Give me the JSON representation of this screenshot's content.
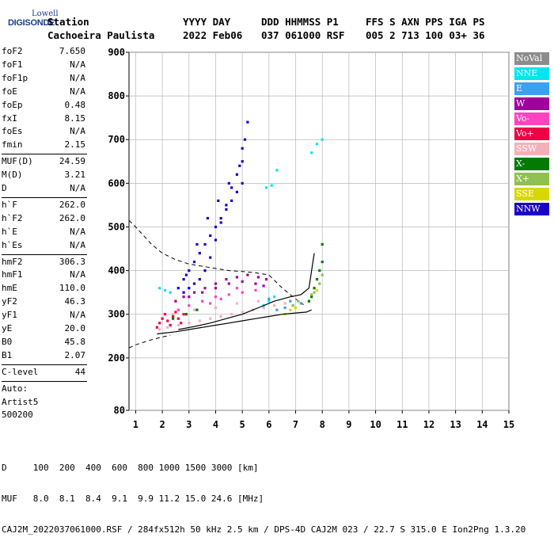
{
  "logo": {
    "line1": "Lowell",
    "line2": "DIGISONDE"
  },
  "header": {
    "row1": [
      {
        "label": "Station",
        "x": 60
      },
      {
        "label": "YYYY DAY",
        "x": 231
      },
      {
        "label": "DDD HHMMSS P1",
        "x": 330
      },
      {
        "label": "FFS S AXN PPS IGA PS",
        "x": 462
      }
    ],
    "row2": [
      {
        "label": "Cachoeira Paulista",
        "x": 60
      },
      {
        "label": "2022 Feb06",
        "x": 231
      },
      {
        "label": "037 061000 RSF",
        "x": 330
      },
      {
        "label": "005 2 713 100 03+ 36",
        "x": 462
      }
    ]
  },
  "params": [
    {
      "name": "foF2",
      "value": "7.650"
    },
    {
      "name": "foF1",
      "value": "N/A"
    },
    {
      "name": "foF1p",
      "value": "N/A"
    },
    {
      "name": "foE",
      "value": "N/A"
    },
    {
      "name": "foEp",
      "value": "0.48"
    },
    {
      "name": "fxI",
      "value": "8.15"
    },
    {
      "name": "foEs",
      "value": "N/A"
    },
    {
      "name": "fmin",
      "value": "2.15",
      "sep_after": true
    },
    {
      "name": "MUF(D)",
      "value": "24.59"
    },
    {
      "name": "M(D)",
      "value": "3.21"
    },
    {
      "name": "D",
      "value": "N/A",
      "sep_after": true
    },
    {
      "name": "h`F",
      "value": "262.0"
    },
    {
      "name": "h`F2",
      "value": "262.0"
    },
    {
      "name": "h`E",
      "value": "N/A"
    },
    {
      "name": "h`Es",
      "value": "N/A",
      "sep_after": true
    },
    {
      "name": "hmF2",
      "value": "306.3"
    },
    {
      "name": "hmF1",
      "value": "N/A"
    },
    {
      "name": "hmE",
      "value": "110.0"
    },
    {
      "name": "yF2",
      "value": "46.3"
    },
    {
      "name": "yF1",
      "value": "N/A"
    },
    {
      "name": "yE",
      "value": "20.0"
    },
    {
      "name": "B0",
      "value": "45.8"
    },
    {
      "name": "B1",
      "value": "2.07",
      "sep_after": true
    },
    {
      "name": "C-level",
      "value": "44",
      "sep_after": true
    },
    {
      "name": "Auto:",
      "value": ""
    },
    {
      "name": "Artist5",
      "value": ""
    },
    {
      "name": "500200",
      "value": ""
    }
  ],
  "legend": [
    {
      "label": "NoVal",
      "color": "#8c8c8c"
    },
    {
      "label": "NNE",
      "color": "#00e5ee"
    },
    {
      "label": "E",
      "color": "#3aa0f0"
    },
    {
      "label": "W",
      "color": "#a0009c"
    },
    {
      "label": "Vo-",
      "color": "#ff44c0"
    },
    {
      "label": "Vo+",
      "color": "#ee0044"
    },
    {
      "label": "SSW",
      "color": "#f4b0b8"
    },
    {
      "label": "X-",
      "color": "#007a00"
    },
    {
      "label": "X+",
      "color": "#8fc050"
    },
    {
      "label": "SSE",
      "color": "#d8d800"
    },
    {
      "label": "NNW",
      "color": "#1a00c8"
    }
  ],
  "footer": {
    "line1": "D     100  200  400  600  800 1000 1500 3000 [km]",
    "line2": "MUF   8.0  8.1  8.4  9.1  9.9 11.2 15.0 24.6 [MHz]",
    "line3": "CAJ2M_2022037061000.RSF / 284fx512h 50 kHz 2.5 km / DPS-4D CAJ2M 023 / 22.7 S 315.0 E Ion2Png 1.3.20"
  },
  "chart_data": {
    "type": "scatter",
    "title": "",
    "xlabel": "",
    "ylabel": "",
    "xlim": [
      0.75,
      15
    ],
    "ylim": [
      80,
      900
    ],
    "xticks": [
      1,
      2,
      3,
      4,
      5,
      6,
      7,
      8,
      9,
      10,
      11,
      12,
      13,
      14,
      15
    ],
    "yticks": [
      80,
      200,
      300,
      400,
      500,
      600,
      700,
      800,
      900
    ],
    "grid": true,
    "series": [
      {
        "name": "NNW",
        "color": "#1a00c8",
        "x": [
          2.6,
          2.8,
          3.0,
          3.2,
          3.4,
          3.6,
          3.8,
          4.0,
          4.2,
          4.4,
          4.6,
          4.8,
          5.0,
          5.0,
          5.0,
          4.8,
          4.6,
          4.4,
          4.2,
          4.0,
          3.8,
          3.6,
          3.4,
          3.2,
          3.0,
          2.8,
          5.1,
          5.2,
          4.9,
          4.5,
          4.1,
          3.7,
          3.3,
          2.9
        ],
        "y": [
          360,
          380,
          400,
          420,
          440,
          460,
          480,
          500,
          520,
          540,
          560,
          580,
          600,
          650,
          680,
          620,
          590,
          550,
          510,
          470,
          430,
          400,
          380,
          370,
          360,
          350,
          700,
          740,
          640,
          600,
          560,
          520,
          460,
          390
        ]
      },
      {
        "name": "W",
        "color": "#a0009c",
        "x": [
          2.5,
          3.0,
          3.5,
          4.0,
          4.5,
          5.0,
          5.5,
          5.8,
          5.9,
          5.6,
          5.2,
          4.8,
          4.4,
          4.0,
          3.6,
          3.2,
          2.8
        ],
        "y": [
          330,
          340,
          350,
          360,
          370,
          375,
          370,
          365,
          380,
          385,
          390,
          385,
          380,
          370,
          360,
          350,
          340
        ]
      },
      {
        "name": "SSW",
        "color": "#f4b0b8",
        "x": [
          1.9,
          2.2,
          2.6,
          3.0,
          3.4,
          3.8,
          4.2,
          4.6,
          5.0,
          5.4,
          5.8,
          6.2,
          6.6,
          2.4,
          3.2,
          4.0,
          4.8,
          5.6
        ],
        "y": [
          265,
          270,
          275,
          280,
          285,
          290,
          295,
          300,
          305,
          310,
          315,
          320,
          325,
          300,
          310,
          315,
          325,
          330
        ]
      },
      {
        "name": "Vo+",
        "color": "#ee0044",
        "x": [
          1.8,
          1.9,
          2.0,
          2.1,
          2.2,
          2.3,
          2.4,
          2.5,
          2.6,
          2.7,
          2.8
        ],
        "y": [
          270,
          280,
          290,
          300,
          285,
          275,
          295,
          305,
          290,
          280,
          300
        ]
      },
      {
        "name": "NNE",
        "color": "#00e5ee",
        "x": [
          1.9,
          2.1,
          2.3,
          5.8,
          6.0,
          6.2,
          6.3,
          7.6,
          7.8,
          8.0,
          5.9,
          6.1
        ],
        "y": [
          360,
          355,
          350,
          320,
          330,
          340,
          630,
          670,
          690,
          700,
          590,
          595
        ]
      },
      {
        "name": "E",
        "color": "#3aa0f0",
        "x": [
          6.3,
          6.6,
          6.9,
          7.2,
          6.8,
          6.0
        ],
        "y": [
          310,
          315,
          320,
          325,
          330,
          335
        ]
      },
      {
        "name": "X-",
        "color": "#007a00",
        "x": [
          7.6,
          7.7,
          7.8,
          7.9,
          8.0,
          8.0,
          7.5,
          2.4,
          2.9,
          3.3
        ],
        "y": [
          340,
          360,
          380,
          400,
          420,
          460,
          330,
          290,
          300,
          310
        ]
      },
      {
        "name": "X+",
        "color": "#8fc050",
        "x": [
          7.7,
          7.9,
          8.0,
          7.6,
          6.9,
          7.1
        ],
        "y": [
          350,
          370,
          390,
          345,
          320,
          330
        ]
      },
      {
        "name": "SSE",
        "color": "#d8d800",
        "x": [
          6.6,
          6.8,
          7.0,
          7.8
        ],
        "y": [
          300,
          310,
          315,
          355
        ]
      },
      {
        "name": "Vo-",
        "color": "#ff44c0",
        "x": [
          2.6,
          3.0,
          3.5,
          4.0,
          4.5,
          5.0,
          5.5,
          4.8,
          4.2,
          3.8
        ],
        "y": [
          310,
          320,
          330,
          340,
          345,
          350,
          355,
          360,
          335,
          325
        ]
      }
    ],
    "profile_dashed": {
      "x": [
        0.75,
        1.0,
        1.3,
        1.6,
        2.0,
        2.5,
        3.0,
        3.5,
        4.0,
        4.5,
        5.0,
        5.5,
        6.0,
        6.5,
        7.0,
        7.3
      ],
      "y": [
        515,
        500,
        480,
        460,
        440,
        425,
        415,
        410,
        405,
        400,
        398,
        395,
        390,
        360,
        335,
        322
      ]
    },
    "profile_dashed_low": {
      "x": [
        0.75,
        1.0,
        1.5,
        2.0,
        2.3
      ],
      "y": [
        223,
        230,
        240,
        248,
        252
      ]
    },
    "trace_lower": {
      "x": [
        1.8,
        2.5,
        3.0,
        3.5,
        4.0,
        4.5,
        5.0,
        5.5,
        6.0,
        6.5,
        7.0,
        7.4,
        7.6
      ],
      "y": [
        255,
        260,
        265,
        270,
        275,
        280,
        285,
        290,
        295,
        300,
        303,
        305,
        310
      ]
    },
    "trace_upper": {
      "x": [
        2.6,
        3.2,
        3.8,
        4.4,
        5.0,
        5.6,
        6.2,
        6.8,
        7.2,
        7.5,
        7.6,
        7.7
      ],
      "y": [
        265,
        272,
        280,
        290,
        300,
        315,
        330,
        340,
        345,
        360,
        400,
        440
      ]
    }
  }
}
